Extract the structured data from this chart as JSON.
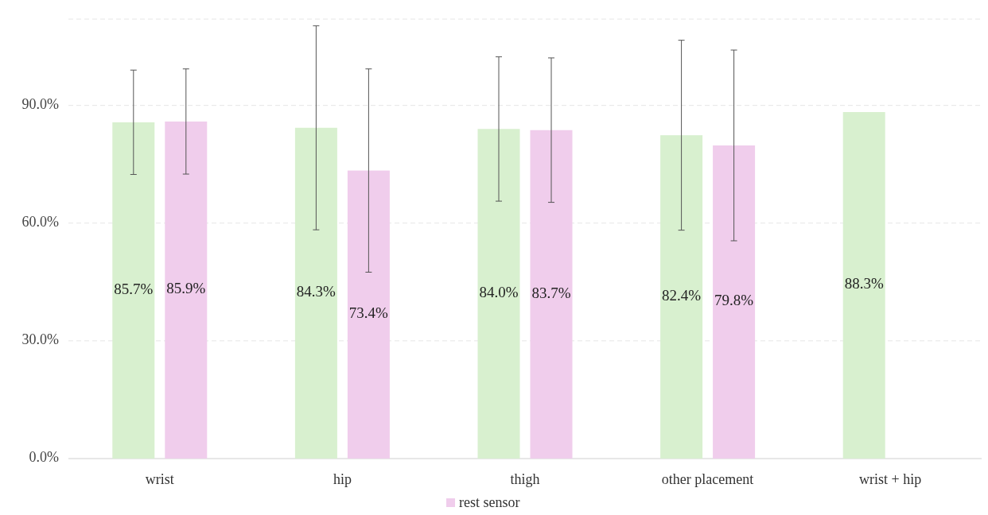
{
  "chart_data": {
    "type": "bar",
    "categories": [
      "wrist",
      "hip",
      "thigh",
      "other placement",
      "wrist + hip"
    ],
    "series": [
      {
        "color": "#d8f0cf",
        "values": [
          85.7,
          84.3,
          84.0,
          82.4,
          88.3
        ],
        "errors": [
          13.3,
          26,
          18.4,
          24.2,
          null
        ],
        "value_labels": [
          "85.7%",
          "84.3%",
          "84.0%",
          "82.4%",
          "88.3%"
        ]
      },
      {
        "name": "rest sensor",
        "color": "#f0cdec",
        "values": [
          85.9,
          73.4,
          83.7,
          79.8,
          null
        ],
        "errors": [
          13.4,
          25.9,
          18.4,
          24.3,
          null
        ],
        "value_labels": [
          "85.9%",
          "73.4%",
          "83.7%",
          "79.8%",
          null
        ]
      }
    ],
    "ylim": [
      0,
      112
    ],
    "yticks": [
      {
        "value": 0,
        "label": "0.0%"
      },
      {
        "value": 30,
        "label": "30.0%"
      },
      {
        "value": 60,
        "label": "60.0%"
      },
      {
        "value": 90,
        "label": "90.0%"
      },
      {
        "value": 112,
        "label": null
      }
    ],
    "grid": "y",
    "legend": "bottom"
  }
}
